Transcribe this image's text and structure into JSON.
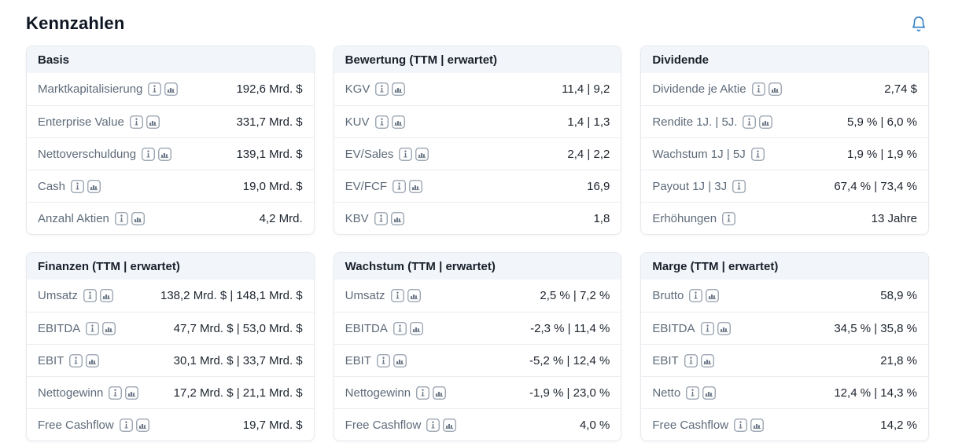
{
  "page": {
    "title": "Kennzahlen"
  },
  "colors": {
    "accent_blue": "#2e7cc4",
    "card_header_bg": "#f2f6fa",
    "label_gray": "#5e6b7a",
    "value_dark": "#1d242e",
    "border_gray": "#e7e9ee",
    "icon_gray": "#6c7887"
  },
  "icons": {
    "bell": "bell-icon",
    "info": "info-icon",
    "chart": "chart-icon"
  },
  "cards": [
    {
      "key": "basis",
      "title": "Basis",
      "rows": [
        {
          "label": "Marktkapitalisierung",
          "icons": [
            "info",
            "chart"
          ],
          "value": "192,6 Mrd. $"
        },
        {
          "label": "Enterprise Value",
          "icons": [
            "info",
            "chart"
          ],
          "value": "331,7 Mrd. $"
        },
        {
          "label": "Nettoverschuldung",
          "icons": [
            "info",
            "chart"
          ],
          "value": "139,1 Mrd. $"
        },
        {
          "label": "Cash",
          "icons": [
            "info",
            "chart"
          ],
          "value": "19,0 Mrd. $"
        },
        {
          "label": "Anzahl Aktien",
          "icons": [
            "info",
            "chart"
          ],
          "value": "4,2 Mrd."
        }
      ]
    },
    {
      "key": "bewertung",
      "title": "Bewertung (TTM | erwartet)",
      "rows": [
        {
          "label": "KGV",
          "icons": [
            "info",
            "chart"
          ],
          "value": "11,4 | 9,2"
        },
        {
          "label": "KUV",
          "icons": [
            "info",
            "chart"
          ],
          "value": "1,4 | 1,3"
        },
        {
          "label": "EV/Sales",
          "icons": [
            "info",
            "chart"
          ],
          "value": "2,4 | 2,2"
        },
        {
          "label": "EV/FCF",
          "icons": [
            "info",
            "chart"
          ],
          "value": "16,9"
        },
        {
          "label": "KBV",
          "icons": [
            "info",
            "chart"
          ],
          "value": "1,8"
        }
      ]
    },
    {
      "key": "dividende",
      "title": "Dividende",
      "rows": [
        {
          "label": "Dividende je Aktie",
          "icons": [
            "info",
            "chart"
          ],
          "value": "2,74 $"
        },
        {
          "label": "Rendite 1J. | 5J.",
          "icons": [
            "info",
            "chart"
          ],
          "value": "5,9 % | 6,0 %"
        },
        {
          "label": "Wachstum 1J | 5J",
          "icons": [
            "info"
          ],
          "value": "1,9 % | 1,9 %"
        },
        {
          "label": "Payout 1J | 3J",
          "icons": [
            "info"
          ],
          "value": "67,4 % | 73,4 %"
        },
        {
          "label": "Erhöhungen",
          "icons": [
            "info"
          ],
          "value": "13 Jahre"
        }
      ]
    },
    {
      "key": "finanzen",
      "title": "Finanzen (TTM | erwartet)",
      "rows": [
        {
          "label": "Umsatz",
          "icons": [
            "info",
            "chart"
          ],
          "value": "138,2 Mrd. $ | 148,1 Mrd. $"
        },
        {
          "label": "EBITDA",
          "icons": [
            "info",
            "chart"
          ],
          "value": "47,7 Mrd. $ | 53,0 Mrd. $"
        },
        {
          "label": "EBIT",
          "icons": [
            "info",
            "chart"
          ],
          "value": "30,1 Mrd. $ | 33,7 Mrd. $"
        },
        {
          "label": "Nettogewinn",
          "icons": [
            "info",
            "chart"
          ],
          "value": "17,2 Mrd. $ | 21,1 Mrd. $"
        },
        {
          "label": "Free Cashflow",
          "icons": [
            "info",
            "chart"
          ],
          "value": "19,7 Mrd. $"
        }
      ]
    },
    {
      "key": "wachstum",
      "title": "Wachstum (TTM | erwartet)",
      "rows": [
        {
          "label": "Umsatz",
          "icons": [
            "info",
            "chart"
          ],
          "value": "2,5 % | 7,2 %"
        },
        {
          "label": "EBITDA",
          "icons": [
            "info",
            "chart"
          ],
          "value": "-2,3 % | 11,4 %"
        },
        {
          "label": "EBIT",
          "icons": [
            "info",
            "chart"
          ],
          "value": "-5,2 % | 12,4 %"
        },
        {
          "label": "Nettogewinn",
          "icons": [
            "info",
            "chart"
          ],
          "value": "-1,9 % | 23,0 %"
        },
        {
          "label": "Free Cashflow",
          "icons": [
            "info",
            "chart"
          ],
          "value": "4,0 %"
        }
      ]
    },
    {
      "key": "marge",
      "title": "Marge (TTM | erwartet)",
      "rows": [
        {
          "label": "Brutto",
          "icons": [
            "info",
            "chart"
          ],
          "value": "58,9 %"
        },
        {
          "label": "EBITDA",
          "icons": [
            "info",
            "chart"
          ],
          "value": "34,5 % | 35,8 %"
        },
        {
          "label": "EBIT",
          "icons": [
            "info",
            "chart"
          ],
          "value": "21,8 %"
        },
        {
          "label": "Netto",
          "icons": [
            "info",
            "chart"
          ],
          "value": "12,4 % | 14,3 %"
        },
        {
          "label": "Free Cashflow",
          "icons": [
            "info",
            "chart"
          ],
          "value": "14,2 %"
        }
      ]
    }
  ]
}
